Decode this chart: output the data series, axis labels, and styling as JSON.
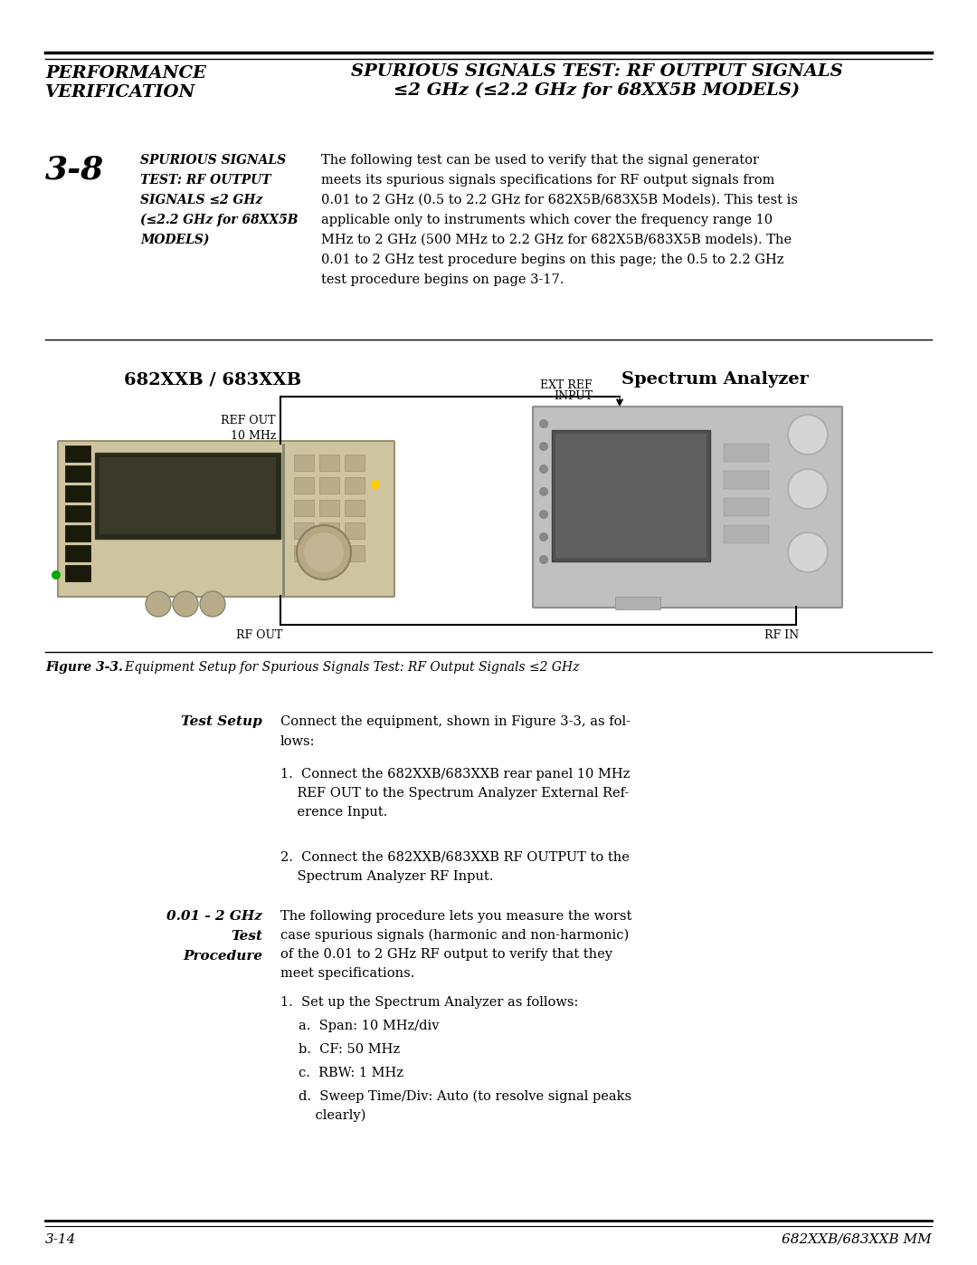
{
  "page_width": 10.8,
  "page_height": 13.97,
  "bg_color": "#ffffff",
  "header_left1": "PERFORMANCE",
  "header_left2": "VERIFICATION",
  "header_right1": "SPURIOUS SIGNALS TEST: RF OUTPUT SIGNALS",
  "header_right2": "≤2 GHz (≤2.2 GHz for 68XX5B MODELS)",
  "section_num": "3-8",
  "section_title_lines": [
    "SPURIOUS SIGNALS",
    "TEST: RF OUTPUT",
    "SIGNALS ≤2 GHz",
    "(≤2.2 GHz for 68XX5B",
    "MODELS)"
  ],
  "section_body_lines": [
    "The following test can be used to verify that the signal generator",
    "meets its spurious signals specifications for RF output signals from",
    "0.01 to 2 GHz (0.5 to 2.2 GHz for 682X5B/683X5B Models). This test is",
    "applicable only to instruments which cover the frequency range 10",
    "MHz to 2 GHz (500 MHz to 2.2 GHz for 682X5B/683X5B models). The",
    "0.01 to 2 GHz test procedure begins on this page; the 0.5 to 2.2 GHz",
    "test procedure begins on page 3-17."
  ],
  "diagram_title_left": "682XXB / 683XXB",
  "diagram_title_right": "Spectrum Analyzer",
  "label_10mhz_line1": "10 MHz",
  "label_10mhz_line2": "REF OUT",
  "label_ext_ref_line1": "EXT REF",
  "label_ext_ref_line2": "INPUT",
  "label_rf_out": "RF OUT",
  "label_rf_in": "RF IN",
  "fig_caption_bold": "Figure 3-3.",
  "fig_caption_rest": "   Equipment Setup for Spurious Signals Test: RF Output Signals ≤2 GHz",
  "test_setup_label": "Test Setup",
  "test_setup_intro": "Connect the equipment, shown in Figure 3-3, as fol-\nlows:",
  "step1_lines": [
    "1.  Connect the 682XXB/683XXB rear panel 10 MHz",
    "    REF OUT to the Spectrum Analyzer External Ref-",
    "    erence Input."
  ],
  "step2_lines": [
    "2.  Connect the 682XXB/683XXB RF OUTPUT to the",
    "    Spectrum Analyzer RF Input."
  ],
  "proc_label1": "0.01 - 2 GHz",
  "proc_label2": "Test",
  "proc_label3": "Procedure",
  "proc_intro_lines": [
    "The following procedure lets you measure the worst",
    "case spurious signals (harmonic and non-harmonic)",
    "of the 0.01 to 2 GHz RF output to verify that they",
    "meet specifications."
  ],
  "proc_step1": "1.  Set up the Spectrum Analyzer as follows:",
  "proc_step1a": "a.  Span: 10 MHz/div",
  "proc_step1b": "b.  CF: 50 MHz",
  "proc_step1c": "c.  RBW: 1 MHz",
  "proc_step1d_lines": [
    "d.  Sweep Time/Div: Auto (to resolve signal peaks",
    "    clearly)"
  ],
  "footer_left": "3-14",
  "footer_right": "682XXB/683XXB MM",
  "inst_color": "#cfc4a0",
  "inst_border": "#9a9070",
  "sa_color": "#c0c0c0",
  "sa_border": "#909090",
  "screen_dark": "#454535",
  "sa_screen_dark": "#606060"
}
